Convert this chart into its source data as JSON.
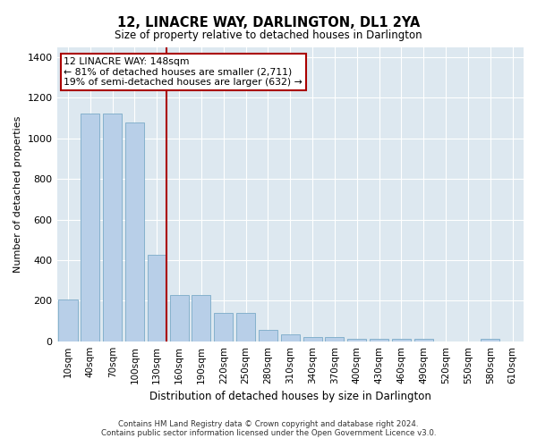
{
  "title": "12, LINACRE WAY, DARLINGTON, DL1 2YA",
  "subtitle": "Size of property relative to detached houses in Darlington",
  "xlabel": "Distribution of detached houses by size in Darlington",
  "ylabel": "Number of detached properties",
  "property_label": "12 LINACRE WAY: 148sqm",
  "annotation_line1": "← 81% of detached houses are smaller (2,711)",
  "annotation_line2": "19% of semi-detached houses are larger (632) →",
  "bar_color": "#b8cfe8",
  "bar_edge_color": "#7aaac8",
  "vline_color": "#aa0000",
  "vline_x": 4,
  "bg_color": "#dde8f0",
  "grid_color": "#ffffff",
  "footer_line1": "Contains HM Land Registry data © Crown copyright and database right 2024.",
  "footer_line2": "Contains public sector information licensed under the Open Government Licence v3.0.",
  "categories": [
    "10sqm",
    "40sqm",
    "70sqm",
    "100sqm",
    "130sqm",
    "160sqm",
    "190sqm",
    "220sqm",
    "250sqm",
    "280sqm",
    "310sqm",
    "340sqm",
    "370sqm",
    "400sqm",
    "430sqm",
    "460sqm",
    "490sqm",
    "520sqm",
    "550sqm",
    "580sqm",
    "610sqm"
  ],
  "values": [
    205,
    1120,
    1120,
    1080,
    425,
    230,
    230,
    140,
    140,
    55,
    35,
    22,
    22,
    12,
    12,
    12,
    12,
    0,
    0,
    12,
    0
  ],
  "ylim": [
    0,
    1450
  ],
  "yticks": [
    0,
    200,
    400,
    600,
    800,
    1000,
    1200,
    1400
  ]
}
